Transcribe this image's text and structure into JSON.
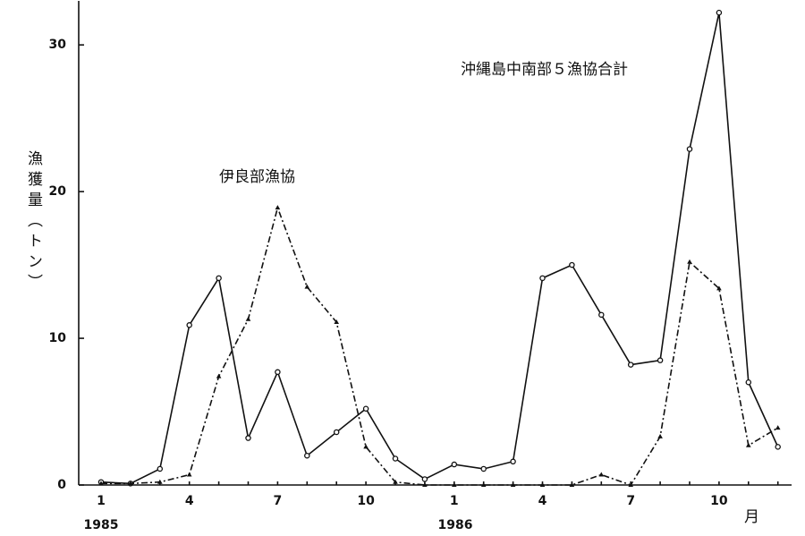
{
  "chart_data": {
    "type": "line",
    "y_label": "漁獲量（トン）",
    "x_unit": "月",
    "year_labels": [
      "1985",
      "1986"
    ],
    "categories": [
      "1",
      null,
      null,
      "4",
      null,
      null,
      "7",
      null,
      null,
      "10",
      null,
      null,
      "1",
      null,
      null,
      "4",
      null,
      null,
      "7",
      null,
      null,
      "10",
      null,
      null
    ],
    "series": [
      {
        "name": "沖縄島中南部５漁協合計",
        "color": "#111111",
        "style": "solid",
        "marker": "circle",
        "values": [
          0.2,
          0.1,
          1.1,
          10.9,
          14.1,
          3.2,
          7.7,
          2.0,
          3.6,
          5.2,
          1.8,
          0.4,
          1.4,
          1.1,
          1.6,
          14.1,
          15.0,
          11.6,
          8.2,
          8.5,
          22.9,
          32.2,
          7.0,
          2.6
        ]
      },
      {
        "name": "伊良部漁協",
        "color": "#111111",
        "style": "dashdot",
        "marker": "triangle",
        "values": [
          0.1,
          0.1,
          0.2,
          0.7,
          7.4,
          11.3,
          18.9,
          13.5,
          11.1,
          2.6,
          0.2,
          0,
          0,
          0,
          0,
          0,
          0,
          0.7,
          0,
          3.3,
          15.2,
          13.4,
          2.7,
          3.9
        ]
      }
    ],
    "ylim": [
      0,
      33
    ],
    "yticks": [
      0,
      10,
      20,
      30
    ]
  }
}
